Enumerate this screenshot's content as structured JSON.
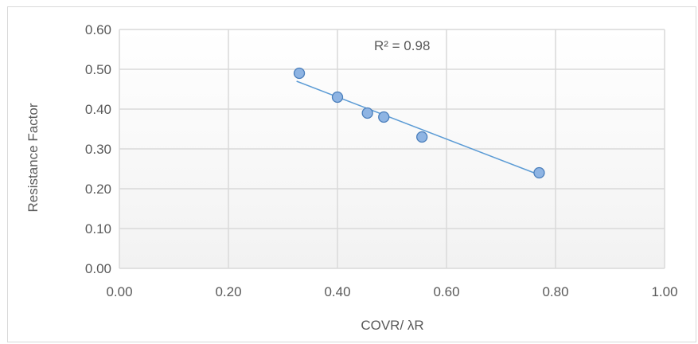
{
  "chart_data": {
    "type": "scatter",
    "xlabel": "COVR/ λR",
    "ylabel": "Resistance Factor",
    "xlim": [
      0,
      1
    ],
    "ylim": [
      0,
      0.6
    ],
    "x_ticks": [
      "0.00",
      "0.20",
      "0.40",
      "0.60",
      "0.80",
      "1.00"
    ],
    "y_ticks": [
      "0.00",
      "0.10",
      "0.20",
      "0.30",
      "0.40",
      "0.50",
      "0.60"
    ],
    "grid": true,
    "points": [
      {
        "x": 0.33,
        "y": 0.49
      },
      {
        "x": 0.4,
        "y": 0.43
      },
      {
        "x": 0.455,
        "y": 0.39
      },
      {
        "x": 0.485,
        "y": 0.38
      },
      {
        "x": 0.555,
        "y": 0.33
      },
      {
        "x": 0.77,
        "y": 0.24
      }
    ],
    "trendline": {
      "type": "linear",
      "x_start": 0.325,
      "y_start": 0.47,
      "x_end": 0.77,
      "y_end": 0.235
    },
    "annotation": "R² = 0.98",
    "colors": {
      "marker_fill": "#8eb4e3",
      "marker_stroke": "#4a7ebb",
      "trendline": "#5b9bd5",
      "grid": "#d9d9d9"
    }
  }
}
